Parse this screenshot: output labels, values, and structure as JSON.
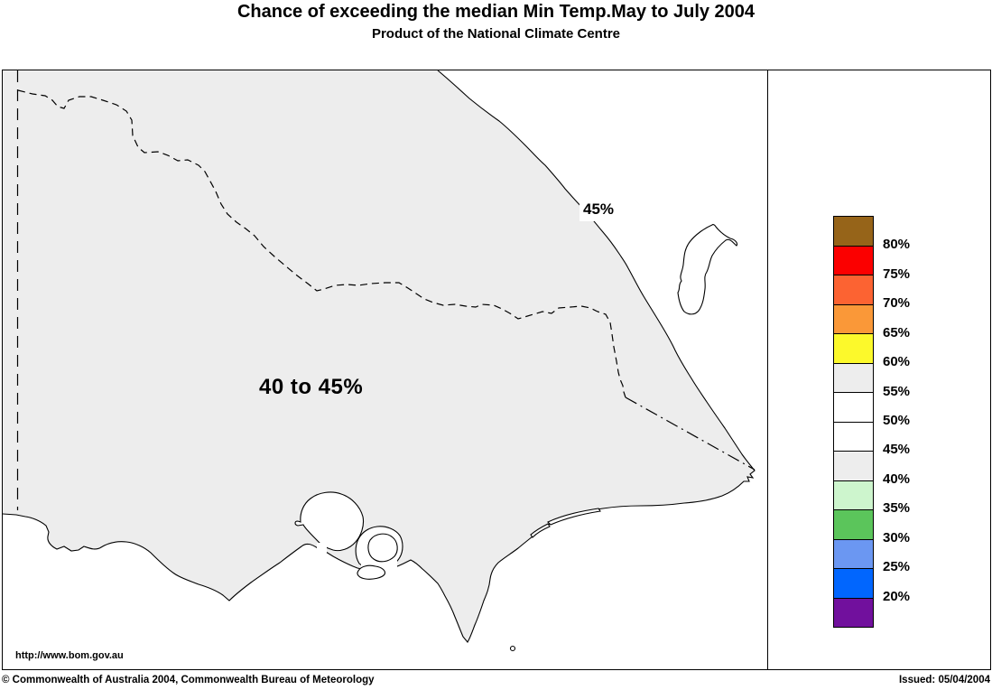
{
  "header": {
    "title": "Chance of exceeding the median Min Temp.May to July 2004",
    "subtitle": "Product of the National Climate Centre"
  },
  "map": {
    "contour_label": "45%",
    "region_label": "40 to 45%",
    "url": "http://www.bom.gov.au"
  },
  "legend": {
    "cells": [
      "#966419",
      "#FB0000",
      "#FC6332",
      "#FA9838",
      "#FCF92B",
      "#EDEDED",
      "#FFFFFF",
      "#FFFFFF",
      "#EDEDED",
      "#CDF5CD",
      "#5BC55B",
      "#6B97F2",
      "#0166FE",
      "#71109D"
    ],
    "boundaries": [
      "80%",
      "75%",
      "70%",
      "65%",
      "60%",
      "55%",
      "50%",
      "45%",
      "40%",
      "35%",
      "30%",
      "25%",
      "20%"
    ]
  },
  "colors": {
    "land": "#EDEDED",
    "ocean": "#FFFFFF",
    "outline": "#000000"
  },
  "footer": {
    "copyright": "© Commonwealth of Australia 2004, Commonwealth Bureau of Meteorology",
    "issued": "Issued: 05/04/2004"
  }
}
